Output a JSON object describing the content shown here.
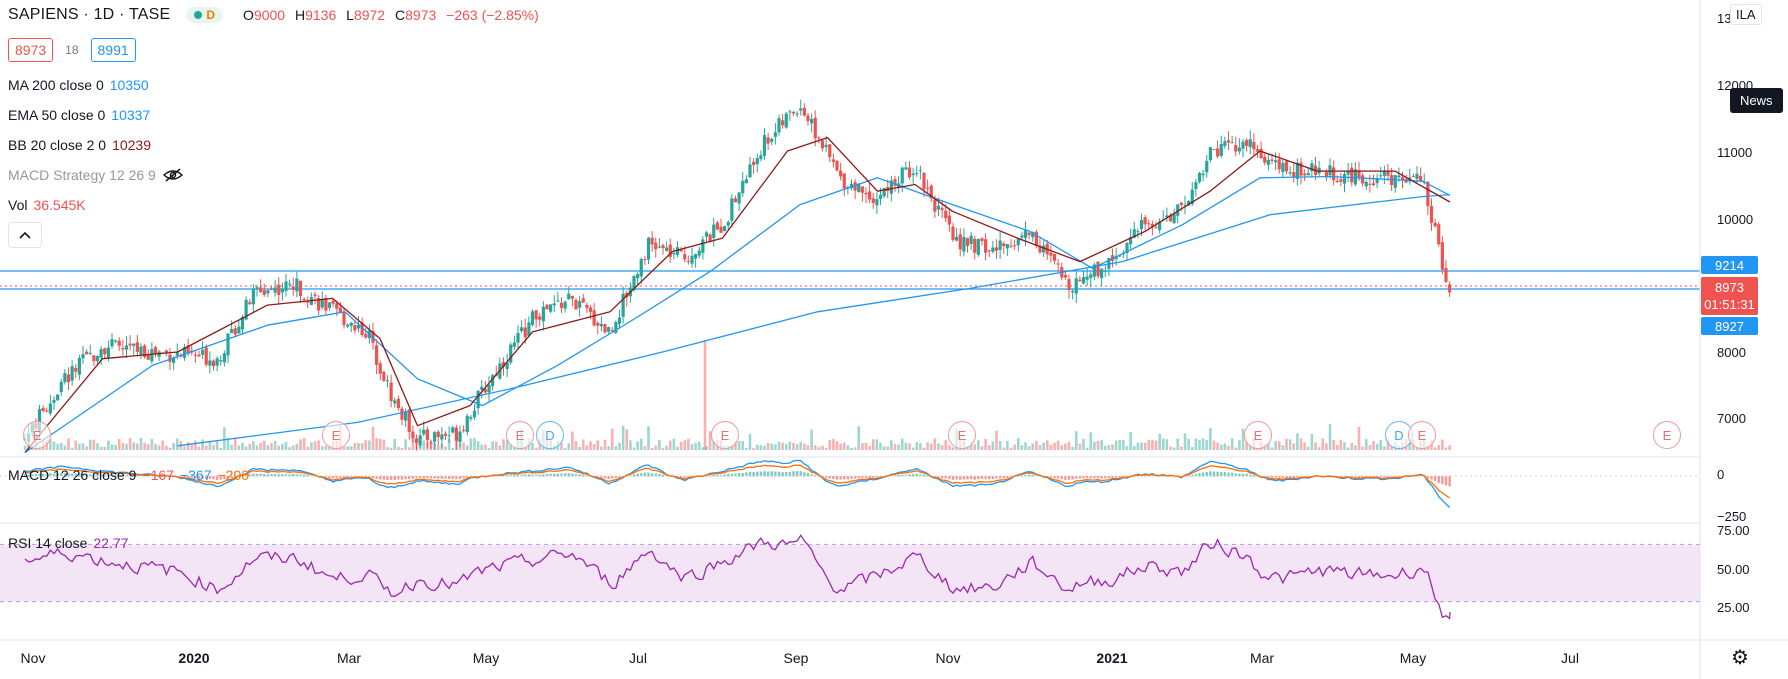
{
  "header": {
    "symbol": "SAPIENS · 1D · TASE",
    "pill_letter": "D",
    "open_key": "O",
    "open": "9000",
    "high_key": "H",
    "high": "9136",
    "low_key": "L",
    "low": "8972",
    "close_key": "C",
    "close": "8973",
    "change": "−263 (−2.85%)"
  },
  "quote_boxes": {
    "bid": "8973",
    "spread": "18",
    "ask": "8991"
  },
  "indicators": {
    "ma": {
      "name": "MA 200 close 0",
      "value": "10350"
    },
    "ema": {
      "name": "EMA 50 close 0",
      "value": "10337"
    },
    "bb": {
      "name": "BB 20 close 2 0",
      "value": "10239"
    },
    "macd_strategy": {
      "name": "MACD Strategy 12 26 9"
    },
    "vol": {
      "name": "Vol",
      "value": "36.545K"
    },
    "macd": {
      "name": "MACD 12 26 close 9",
      "hist": "−167",
      "macd": "−367",
      "signal": "−200"
    },
    "rsi": {
      "name": "RSI 14 close",
      "value": "22.77"
    }
  },
  "currency_button": "ILA",
  "news_button": "News",
  "price_axis": {
    "labels": [
      "13",
      "12000",
      "11000",
      "10000",
      "8000",
      "7000"
    ]
  },
  "price_tags": {
    "high_line": "9214",
    "last_price": "8973",
    "countdown": "01:51:31",
    "low_line": "8927"
  },
  "macd_axis": [
    "0",
    "−250"
  ],
  "rsi_axis": [
    "75.00",
    "50.00",
    "25.00"
  ],
  "time_axis": [
    {
      "label": "Nov",
      "bold": false
    },
    {
      "label": "2020",
      "bold": true
    },
    {
      "label": "Mar",
      "bold": false
    },
    {
      "label": "May",
      "bold": false
    },
    {
      "label": "Jul",
      "bold": false
    },
    {
      "label": "Sep",
      "bold": false
    },
    {
      "label": "Nov",
      "bold": false
    },
    {
      "label": "2021",
      "bold": true
    },
    {
      "label": "Mar",
      "bold": false
    },
    {
      "label": "May",
      "bold": false
    },
    {
      "label": "Jul",
      "bold": false
    }
  ],
  "events": [
    {
      "type": "E"
    },
    {
      "type": "E"
    },
    {
      "type": "E"
    },
    {
      "type": "D"
    },
    {
      "type": "E"
    },
    {
      "type": "E"
    },
    {
      "type": "E"
    },
    {
      "type": "D"
    },
    {
      "type": "E"
    },
    {
      "type": "E"
    }
  ],
  "colors": {
    "up": "#26a69a",
    "down": "#ef5350",
    "ma200": "#2196f3",
    "ema50": "#2196f3",
    "bb_basis": "#8b1a1a",
    "macd": "#2196f3",
    "signal": "#ff6d00",
    "rsi": "#9c27b0",
    "rsi_band": "#f3e5f5",
    "price_line": "#2196f3",
    "last_tag": "#ef5350"
  },
  "chart_data": {
    "type": "candlestick",
    "interval": "1D",
    "x_range": [
      "2019-10",
      "2021-07"
    ],
    "price_close_path": [
      [
        "2019-10-20",
        6700
      ],
      [
        "2019-11-05",
        7600
      ],
      [
        "2019-11-20",
        8100
      ],
      [
        "2019-12-10",
        8000
      ],
      [
        "2020-01-05",
        7900
      ],
      [
        "2020-01-20",
        8900
      ],
      [
        "2020-02-05",
        9000
      ],
      [
        "2020-02-20",
        8600
      ],
      [
        "2020-03-05",
        8300
      ],
      [
        "2020-03-15",
        7300
      ],
      [
        "2020-03-25",
        6700
      ],
      [
        "2020-04-10",
        6800
      ],
      [
        "2020-04-25",
        7700
      ],
      [
        "2020-05-10",
        8500
      ],
      [
        "2020-05-25",
        8800
      ],
      [
        "2020-06-10",
        8300
      ],
      [
        "2020-06-25",
        9600
      ],
      [
        "2020-07-10",
        9400
      ],
      [
        "2020-07-25",
        9900
      ],
      [
        "2020-08-10",
        11100
      ],
      [
        "2020-08-25",
        11700
      ],
      [
        "2020-09-10",
        10600
      ],
      [
        "2020-09-25",
        10300
      ],
      [
        "2020-10-10",
        10800
      ],
      [
        "2020-10-25",
        9700
      ],
      [
        "2020-11-10",
        9500
      ],
      [
        "2020-11-25",
        9800
      ],
      [
        "2020-12-10",
        9000
      ],
      [
        "2020-12-25",
        9300
      ],
      [
        "2021-01-10",
        9900
      ],
      [
        "2021-01-25",
        10100
      ],
      [
        "2021-02-05",
        11000
      ],
      [
        "2021-02-20",
        11100
      ],
      [
        "2021-03-05",
        10700
      ],
      [
        "2021-03-20",
        10700
      ],
      [
        "2021-04-05",
        10600
      ],
      [
        "2021-04-20",
        10600
      ],
      [
        "2021-05-01",
        10550
      ],
      [
        "2021-05-07",
        9600
      ],
      [
        "2021-05-12",
        8973
      ]
    ],
    "ma200_path": [
      [
        "2019-12-20",
        6600
      ],
      [
        "2020-03-01",
        6950
      ],
      [
        "2020-05-01",
        7450
      ],
      [
        "2020-07-01",
        8000
      ],
      [
        "2020-09-01",
        8600
      ],
      [
        "2020-11-01",
        8950
      ],
      [
        "2021-01-01",
        9350
      ],
      [
        "2021-03-01",
        10050
      ],
      [
        "2021-05-01",
        10320
      ],
      [
        "2021-05-12",
        10350
      ]
    ],
    "ema50_path": [
      [
        "2019-10-20",
        6500
      ],
      [
        "2019-12-10",
        7800
      ],
      [
        "2020-01-25",
        8400
      ],
      [
        "2020-02-25",
        8600
      ],
      [
        "2020-03-25",
        7600
      ],
      [
        "2020-04-20",
        7200
      ],
      [
        "2020-05-20",
        7800
      ],
      [
        "2020-06-20",
        8500
      ],
      [
        "2020-07-20",
        9200
      ],
      [
        "2020-08-25",
        10200
      ],
      [
        "2020-09-25",
        10600
      ],
      [
        "2020-10-25",
        10200
      ],
      [
        "2020-11-25",
        9800
      ],
      [
        "2020-12-20",
        9250
      ],
      [
        "2021-01-25",
        9900
      ],
      [
        "2021-02-25",
        10600
      ],
      [
        "2021-03-25",
        10620
      ],
      [
        "2021-05-01",
        10550
      ],
      [
        "2021-05-12",
        10337
      ]
    ],
    "bb_basis_path": [
      [
        "2019-10-20",
        6500
      ],
      [
        "2019-11-20",
        7900
      ],
      [
        "2019-12-20",
        8000
      ],
      [
        "2020-01-25",
        8700
      ],
      [
        "2020-02-20",
        8800
      ],
      [
        "2020-03-10",
        8200
      ],
      [
        "2020-03-25",
        6900
      ],
      [
        "2020-04-15",
        7200
      ],
      [
        "2020-05-10",
        8300
      ],
      [
        "2020-06-10",
        8600
      ],
      [
        "2020-07-05",
        9500
      ],
      [
        "2020-07-25",
        9700
      ],
      [
        "2020-08-20",
        11000
      ],
      [
        "2020-09-05",
        11200
      ],
      [
        "2020-09-25",
        10400
      ],
      [
        "2020-10-10",
        10500
      ],
      [
        "2020-10-25",
        10100
      ],
      [
        "2020-11-20",
        9700
      ],
      [
        "2020-12-15",
        9350
      ],
      [
        "2021-01-10",
        9800
      ],
      [
        "2021-02-05",
        10400
      ],
      [
        "2021-02-25",
        11000
      ],
      [
        "2021-03-20",
        10700
      ],
      [
        "2021-04-20",
        10700
      ],
      [
        "2021-05-12",
        10239
      ]
    ],
    "current": {
      "open": 9000,
      "high": 9136,
      "low": 8972,
      "close": 8973,
      "change": -263,
      "change_pct": -2.85
    },
    "horizontal_lines": [
      9214,
      8927
    ],
    "macd": {
      "hist": -167,
      "macd": -367,
      "signal": -200
    },
    "rsi": {
      "value": 22.77,
      "upper_band": 70,
      "lower_band": 30
    },
    "volume_last": "36.545K"
  }
}
